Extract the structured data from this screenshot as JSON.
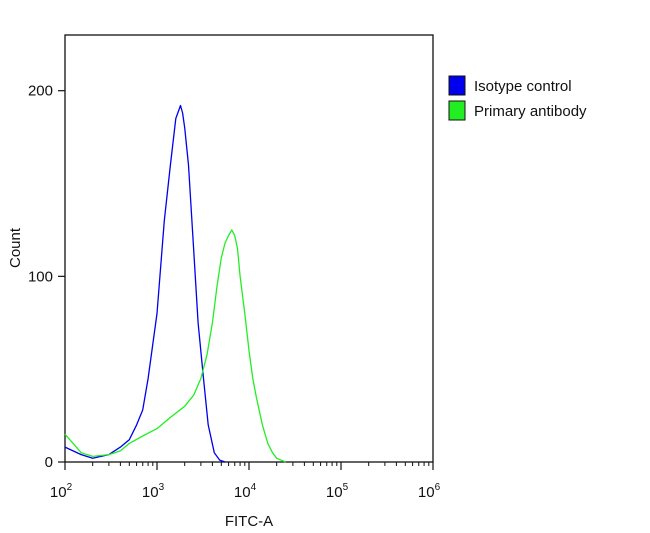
{
  "chart_data": {
    "type": "line",
    "title": "",
    "xlabel": "FITC-A",
    "ylabel": "Count",
    "x_scale": "log",
    "xlim": [
      100,
      1000000
    ],
    "ylim": [
      0,
      230
    ],
    "grid": false,
    "legend_position": "top-right-outside",
    "x_ticks": [
      {
        "value": 100,
        "base": "10",
        "exp": "2"
      },
      {
        "value": 1000,
        "base": "10",
        "exp": "3"
      },
      {
        "value": 10000,
        "base": "10",
        "exp": "4"
      },
      {
        "value": 100000,
        "base": "10",
        "exp": "5"
      },
      {
        "value": 1000000,
        "base": "10",
        "exp": "6"
      }
    ],
    "y_ticks": [
      {
        "value": 0,
        "label": "0"
      },
      {
        "value": 100,
        "label": "100"
      },
      {
        "value": 200,
        "label": "200"
      }
    ],
    "series": [
      {
        "name": "Isotype control",
        "color": "#0000ee",
        "x": [
          100,
          150,
          200,
          300,
          400,
          500,
          600,
          700,
          800,
          1000,
          1200,
          1400,
          1600,
          1800,
          1900,
          2000,
          2200,
          2500,
          2800,
          3200,
          3600,
          4200,
          4800,
          5500
        ],
        "y": [
          8,
          4,
          2,
          4,
          8,
          12,
          20,
          28,
          45,
          80,
          130,
          160,
          185,
          192,
          188,
          180,
          160,
          115,
          75,
          45,
          20,
          5,
          1,
          0
        ]
      },
      {
        "name": "Primary antibody",
        "color": "#22ee22",
        "x": [
          100,
          150,
          200,
          300,
          400,
          500,
          700,
          1000,
          1400,
          2000,
          2500,
          3000,
          3500,
          4000,
          4500,
          5000,
          5500,
          6000,
          6500,
          7000,
          7500,
          8000,
          9000,
          10000,
          11000,
          12000,
          14000,
          16000,
          18000,
          20000,
          25000
        ],
        "y": [
          15,
          5,
          3,
          4,
          6,
          10,
          14,
          18,
          24,
          30,
          36,
          45,
          58,
          75,
          95,
          110,
          118,
          122,
          125,
          122,
          115,
          100,
          80,
          60,
          45,
          35,
          20,
          10,
          5,
          2,
          0
        ]
      }
    ]
  }
}
